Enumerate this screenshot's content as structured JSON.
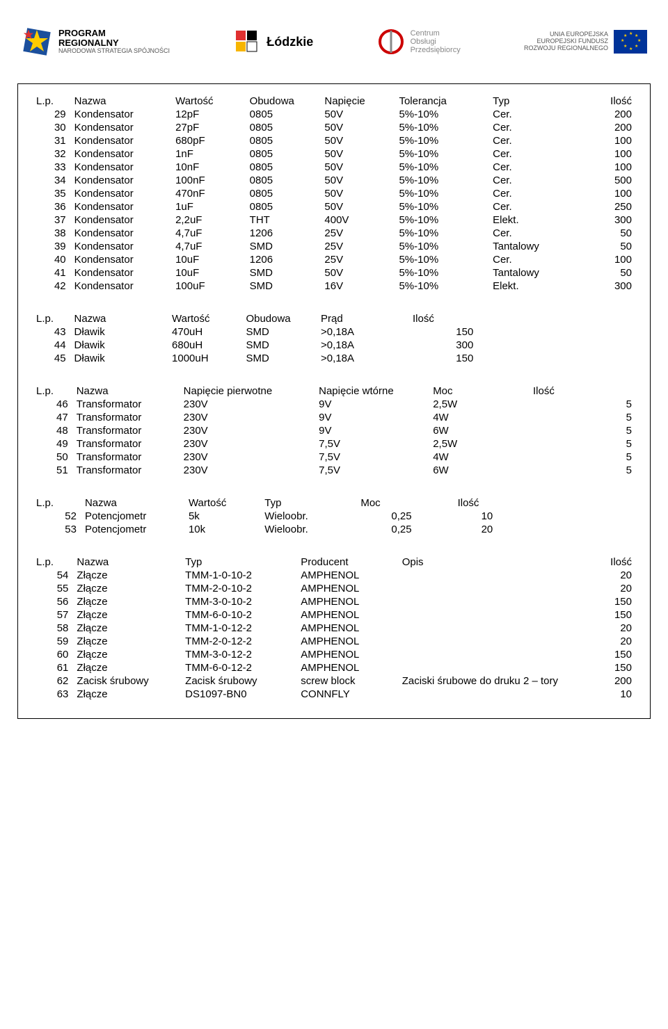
{
  "header": {
    "logo1": {
      "line1": "PROGRAM",
      "line2": "REGIONALNY",
      "sub": "NARODOWA STRATEGIA SPÓJNOŚCI"
    },
    "logo2": {
      "text": "Łódzkie"
    },
    "logo3": {
      "line1": "Centrum",
      "line2": "Obsługi",
      "line3": "Przedsiębiorcy"
    },
    "logo4": {
      "line1": "UNIA EUROPEJSKA",
      "line2": "EUROPEJSKI FUNDUSZ",
      "line3": "ROZWOJU REGIONALNEGO"
    }
  },
  "table1": {
    "headers": {
      "lp": "L.p.",
      "nazwa": "Nazwa",
      "wartosc": "Wartość",
      "obudowa": "Obudowa",
      "napiecie": "Napięcie",
      "tolerancja": "Tolerancja",
      "typ": "Typ",
      "ilosc": "Ilość"
    },
    "rows": [
      {
        "lp": "29",
        "n": "Kondensator",
        "w": "12pF",
        "o": "0805",
        "np": "50V",
        "t": "5%-10%",
        "ty": "Cer.",
        "i": "200"
      },
      {
        "lp": "30",
        "n": "Kondensator",
        "w": "27pF",
        "o": "0805",
        "np": "50V",
        "t": "5%-10%",
        "ty": "Cer.",
        "i": "200"
      },
      {
        "lp": "31",
        "n": "Kondensator",
        "w": "680pF",
        "o": "0805",
        "np": "50V",
        "t": "5%-10%",
        "ty": "Cer.",
        "i": "100"
      },
      {
        "lp": "32",
        "n": "Kondensator",
        "w": "1nF",
        "o": "0805",
        "np": "50V",
        "t": "5%-10%",
        "ty": "Cer.",
        "i": "100"
      },
      {
        "lp": "33",
        "n": "Kondensator",
        "w": "10nF",
        "o": "0805",
        "np": "50V",
        "t": "5%-10%",
        "ty": "Cer.",
        "i": "100"
      },
      {
        "lp": "34",
        "n": "Kondensator",
        "w": "100nF",
        "o": "0805",
        "np": "50V",
        "t": "5%-10%",
        "ty": "Cer.",
        "i": "500"
      },
      {
        "lp": "35",
        "n": "Kondensator",
        "w": "470nF",
        "o": "0805",
        "np": "50V",
        "t": "5%-10%",
        "ty": "Cer.",
        "i": "100"
      },
      {
        "lp": "36",
        "n": "Kondensator",
        "w": "1uF",
        "o": "0805",
        "np": "50V",
        "t": "5%-10%",
        "ty": "Cer.",
        "i": "250"
      },
      {
        "lp": "37",
        "n": "Kondensator",
        "w": "2,2uF",
        "o": "THT",
        "np": "400V",
        "t": "5%-10%",
        "ty": "Elekt.",
        "i": "300"
      },
      {
        "lp": "38",
        "n": "Kondensator",
        "w": "4,7uF",
        "o": "1206",
        "np": "25V",
        "t": "5%-10%",
        "ty": "Cer.",
        "i": "50"
      },
      {
        "lp": "39",
        "n": "Kondensator",
        "w": "4,7uF",
        "o": "SMD",
        "np": "25V",
        "t": "5%-10%",
        "ty": "Tantalowy",
        "i": "50"
      },
      {
        "lp": "40",
        "n": "Kondensator",
        "w": "10uF",
        "o": "1206",
        "np": "25V",
        "t": "5%-10%",
        "ty": "Cer.",
        "i": "100"
      },
      {
        "lp": "41",
        "n": "Kondensator",
        "w": "10uF",
        "o": "SMD",
        "np": "50V",
        "t": "5%-10%",
        "ty": "Tantalowy",
        "i": "50"
      },
      {
        "lp": "42",
        "n": "Kondensator",
        "w": "100uF",
        "o": "SMD",
        "np": "16V",
        "t": "5%-10%",
        "ty": "Elekt.",
        "i": "300"
      }
    ]
  },
  "table2": {
    "headers": {
      "lp": "L.p.",
      "nazwa": "Nazwa",
      "wartosc": "Wartość",
      "obudowa": "Obudowa",
      "prad": "Prąd",
      "ilosc": "Ilość"
    },
    "rows": [
      {
        "lp": "43",
        "n": "Dławik",
        "w": "470uH",
        "o": "SMD",
        "p": ">0,18A",
        "i": "150"
      },
      {
        "lp": "44",
        "n": "Dławik",
        "w": "680uH",
        "o": "SMD",
        "p": ">0,18A",
        "i": "300"
      },
      {
        "lp": "45",
        "n": "Dławik",
        "w": "1000uH",
        "o": "SMD",
        "p": ">0,18A",
        "i": "150"
      }
    ]
  },
  "table3": {
    "headers": {
      "lp": "L.p.",
      "nazwa": "Nazwa",
      "np": "Napięcie pierwotne",
      "nw": "Napięcie wtórne",
      "moc": "Moc",
      "ilosc": "Ilość"
    },
    "rows": [
      {
        "lp": "46",
        "n": "Transformator",
        "np": "230V",
        "nw": "9V",
        "m": "2,5W",
        "i": "5"
      },
      {
        "lp": "47",
        "n": "Transformator",
        "np": "230V",
        "nw": "9V",
        "m": "4W",
        "i": "5"
      },
      {
        "lp": "48",
        "n": "Transformator",
        "np": "230V",
        "nw": "9V",
        "m": "6W",
        "i": "5"
      },
      {
        "lp": "49",
        "n": "Transformator",
        "np": "230V",
        "nw": "7,5V",
        "m": "2,5W",
        "i": "5"
      },
      {
        "lp": "50",
        "n": "Transformator",
        "np": "230V",
        "nw": "7,5V",
        "m": "4W",
        "i": "5"
      },
      {
        "lp": "51",
        "n": "Transformator",
        "np": "230V",
        "nw": "7,5V",
        "m": "6W",
        "i": "5"
      }
    ]
  },
  "table4": {
    "headers": {
      "lp": "L.p.",
      "nazwa": "Nazwa",
      "wartosc": "Wartość",
      "typ": "Typ",
      "moc": "Moc",
      "ilosc": "Ilość"
    },
    "rows": [
      {
        "lp": "52",
        "n": "Potencjometr",
        "w": "5k",
        "t": "Wieloobr.",
        "m": "0,25",
        "i": "10"
      },
      {
        "lp": "53",
        "n": "Potencjometr",
        "w": "10k",
        "t": "Wieloobr.",
        "m": "0,25",
        "i": "20"
      }
    ]
  },
  "table5": {
    "headers": {
      "lp": "L.p.",
      "nazwa": "Nazwa",
      "typ": "Typ",
      "producent": "Producent",
      "opis": "Opis",
      "ilosc": "Ilość"
    },
    "rows": [
      {
        "lp": "54",
        "n": "Złącze",
        "t": "TMM-1-0-10-2",
        "p": "AMPHENOL",
        "o": "",
        "i": "20"
      },
      {
        "lp": "55",
        "n": "Złącze",
        "t": "TMM-2-0-10-2",
        "p": "AMPHENOL",
        "o": "",
        "i": "20"
      },
      {
        "lp": "56",
        "n": "Złącze",
        "t": "TMM-3-0-10-2",
        "p": "AMPHENOL",
        "o": "",
        "i": "150"
      },
      {
        "lp": "57",
        "n": "Złącze",
        "t": "TMM-6-0-10-2",
        "p": "AMPHENOL",
        "o": "",
        "i": "150"
      },
      {
        "lp": "58",
        "n": "Złącze",
        "t": "TMM-1-0-12-2",
        "p": "AMPHENOL",
        "o": "",
        "i": "20"
      },
      {
        "lp": "59",
        "n": "Złącze",
        "t": "TMM-2-0-12-2",
        "p": "AMPHENOL",
        "o": "",
        "i": "20"
      },
      {
        "lp": "60",
        "n": "Złącze",
        "t": "TMM-3-0-12-2",
        "p": "AMPHENOL",
        "o": "",
        "i": "150"
      },
      {
        "lp": "61",
        "n": "Złącze",
        "t": "TMM-6-0-12-2",
        "p": "AMPHENOL",
        "o": "",
        "i": "150"
      },
      {
        "lp": "62",
        "n": "Zacisk śrubowy",
        "t": "Zacisk śrubowy",
        "p": "screw block",
        "o": "Zaciski śrubowe do druku  2 – tory",
        "i": "200"
      },
      {
        "lp": "63",
        "n": "Złącze",
        "t": "DS1097-BN0",
        "p": "CONNFLY",
        "o": "",
        "i": "10"
      }
    ]
  }
}
